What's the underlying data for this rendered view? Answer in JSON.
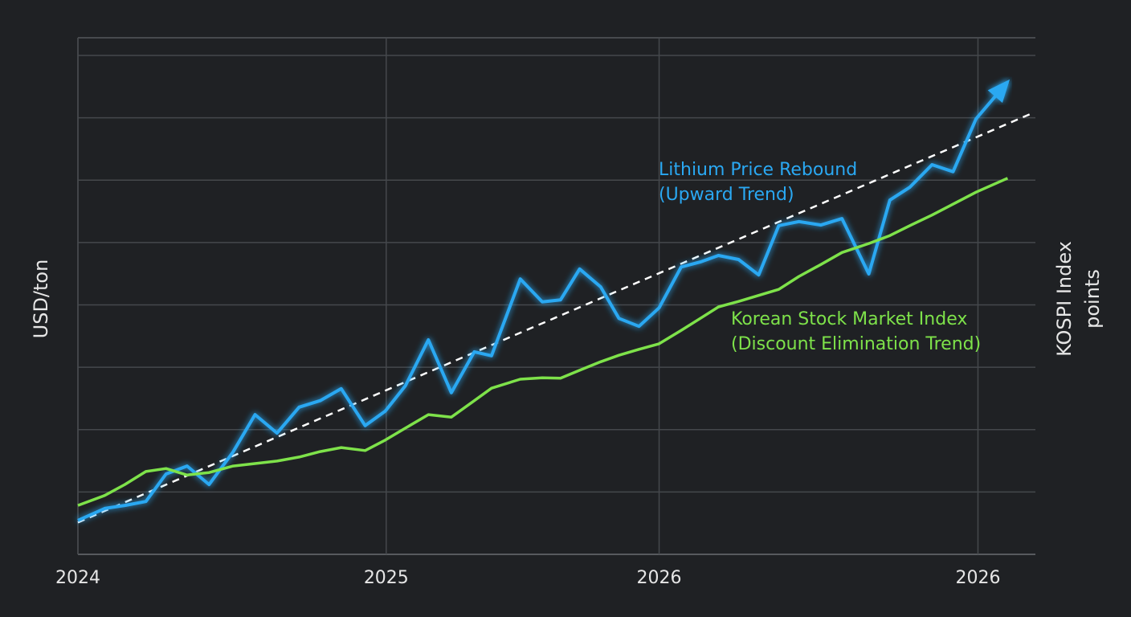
{
  "chart_data": {
    "type": "line",
    "x_ticks_note_free": true,
    "x": [
      0,
      2.8,
      4.9,
      7.1,
      9.2,
      11.4,
      13.7,
      16.2,
      18.5,
      20.8,
      23.1,
      25.3,
      27.5,
      30.0,
      32.1,
      34.2,
      36.6,
      39.0,
      41.4,
      43.2,
      46.2,
      48.5,
      50.4,
      52.4,
      54.6,
      56.5,
      58.6,
      60.7,
      63.0,
      65.0,
      66.9,
      69.0,
      71.1,
      73.2,
      75.3,
      77.6,
      79.8,
      82.6,
      84.8,
      86.9,
      89.2,
      91.4,
      93.8,
      97.1
    ],
    "series": [
      {
        "name": "Lithium Price Rebound",
        "name_line2": "(Upward Trend)",
        "color": "#2aa8f2",
        "axis": "y",
        "values": [
          6.8,
          9.2,
          9.8,
          10.6,
          16.1,
          17.7,
          14.0,
          20.5,
          28.0,
          24.3,
          29.5,
          30.8,
          33.2,
          25.8,
          28.7,
          33.8,
          43.0,
          32.4,
          40.6,
          39.8,
          55.2,
          50.6,
          51.0,
          57.2,
          53.6,
          47.3,
          45.7,
          49.4,
          57.6,
          58.6,
          59.9,
          59.1,
          56.0,
          65.9,
          66.7,
          66.0,
          67.3,
          56.2,
          71.0,
          73.6,
          78.1,
          76.7,
          87.3,
          94.7
        ]
      },
      {
        "name": "Korean Stock Market Index",
        "name_line2": "(Discount Elimination Trend)",
        "color": "#7ee24a",
        "axis": "y2",
        "values": [
          9.8,
          11.8,
          14.0,
          16.6,
          17.2,
          15.9,
          16.4,
          17.7,
          18.2,
          18.7,
          19.5,
          20.6,
          21.4,
          20.8,
          22.9,
          25.3,
          28.0,
          27.5,
          30.8,
          33.3,
          35.1,
          35.4,
          35.3,
          36.9,
          38.6,
          39.9,
          41.1,
          42.2,
          44.9,
          47.3,
          49.6,
          50.7,
          51.9,
          53.1,
          55.7,
          58.1,
          60.5,
          62.3,
          63.9,
          65.9,
          68.0,
          70.2,
          72.6,
          75.4
        ]
      }
    ],
    "trend": {
      "color": "#ffffff",
      "x": [
        0,
        99.4
      ],
      "values": [
        6.4,
        88.2
      ]
    },
    "xlim": [
      0,
      100
    ],
    "xticks": [
      {
        "value": 0,
        "label": "2024"
      },
      {
        "value": 32.2,
        "label": "2025"
      },
      {
        "value": 60.7,
        "label": "2026"
      },
      {
        "value": 94,
        "label": "2026"
      }
    ],
    "ylim": [
      0,
      100
    ],
    "y2lim": [
      0,
      100
    ],
    "y_label": "USD/ton",
    "y2_label": [
      "KOSPI Index",
      "points"
    ],
    "grid": true
  }
}
